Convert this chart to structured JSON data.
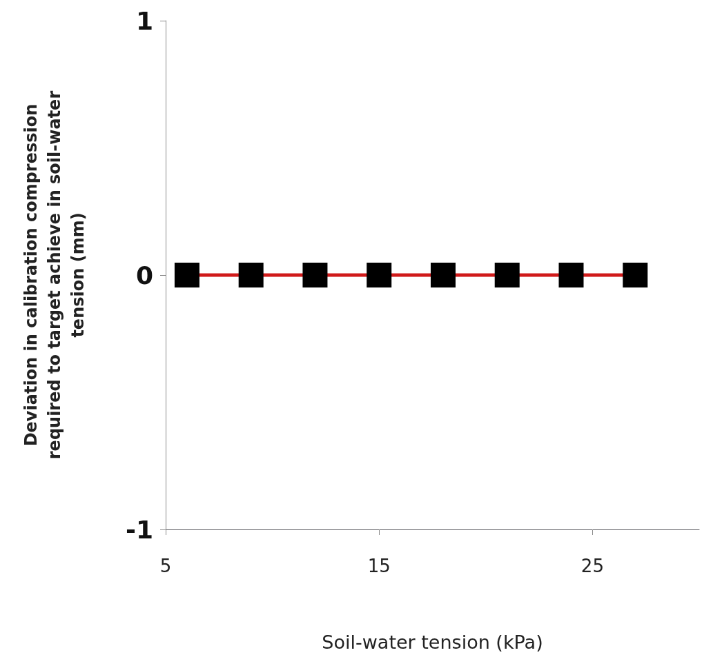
{
  "chart_data": {
    "type": "scatter",
    "xlabel": "Soil-water tension (kPa)",
    "ylabel": "Deviation in calibration compression required to target achieve in soil-water tension (mm)",
    "series": [
      {
        "type": "line",
        "color": "#d01a1a",
        "x": [
          6,
          27
        ],
        "values": [
          0,
          0
        ],
        "marker": "none"
      },
      {
        "color": "#000000",
        "x": [
          6,
          9,
          12,
          15,
          18,
          21,
          24,
          27
        ],
        "values": [
          0,
          0,
          0,
          0,
          0,
          0,
          0,
          0
        ],
        "marker": "square"
      }
    ],
    "xlim": [
      5,
      30
    ],
    "xticks": [
      5,
      15,
      25
    ],
    "ylim": [
      -1,
      1
    ],
    "yticks": [
      -1,
      0,
      1
    ],
    "grid": false
  }
}
